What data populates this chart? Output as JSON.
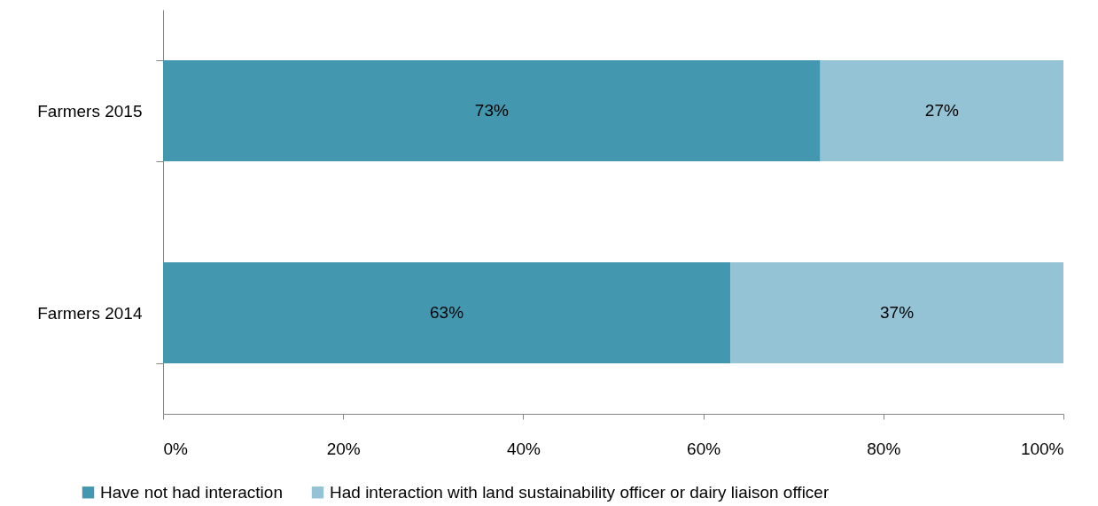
{
  "chart_data": {
    "type": "bar",
    "orientation": "horizontal",
    "stacked": true,
    "categories": [
      "Farmers 2015",
      "Farmers 2014"
    ],
    "series": [
      {
        "name": "Have not had interaction",
        "color": "#4398b0",
        "values": [
          73,
          63
        ],
        "value_labels": [
          "73%",
          "63%"
        ]
      },
      {
        "name": "Had interaction with land sustainability officer or dairy liaison officer",
        "color": "#93c3d4",
        "values": [
          27,
          37
        ],
        "value_labels": [
          "27%",
          "37%"
        ]
      }
    ],
    "xlim": [
      0,
      100
    ],
    "xticks": [
      {
        "value": 0,
        "label": "0%"
      },
      {
        "value": 20,
        "label": "20%"
      },
      {
        "value": 40,
        "label": "40%"
      },
      {
        "value": 60,
        "label": "60%"
      },
      {
        "value": 80,
        "label": "80%"
      },
      {
        "value": 100,
        "label": "100%"
      }
    ],
    "grid": false,
    "legend": "bottom"
  }
}
